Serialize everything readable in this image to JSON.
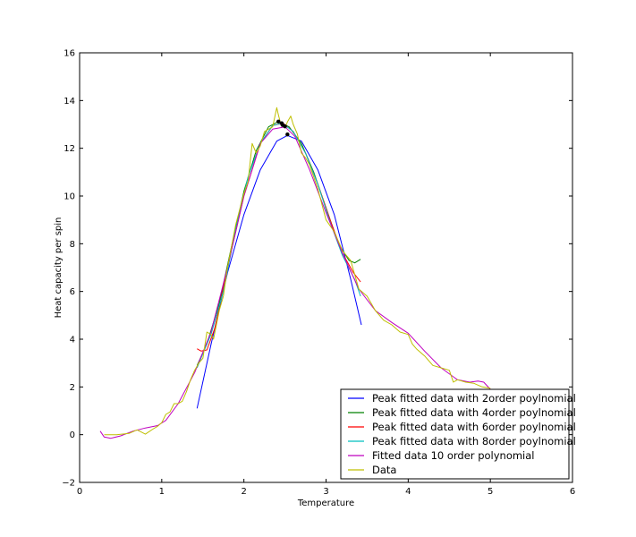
{
  "chart_data": {
    "type": "line",
    "title": "",
    "xlabel": "Temperature",
    "ylabel": "Heat capacity per spin",
    "xlim": [
      0,
      6
    ],
    "ylim": [
      -2,
      16
    ],
    "xticks": [
      "0",
      "1",
      "2",
      "3",
      "4",
      "5",
      "6"
    ],
    "yticks": [
      "−2",
      "0",
      "2",
      "4",
      "6",
      "8",
      "10",
      "12",
      "14",
      "16"
    ],
    "grid": false,
    "legend_position": "bottom-right",
    "series": [
      {
        "name": "Peak fitted data with 2order poylnomial",
        "color": "#0000ff",
        "x": [
          1.43,
          1.6,
          1.8,
          2.0,
          2.2,
          2.4,
          2.53,
          2.7,
          2.9,
          3.1,
          3.3,
          3.43
        ],
        "y": [
          1.1,
          3.78,
          6.78,
          9.22,
          11.1,
          12.3,
          12.54,
          12.3,
          11.1,
          9.22,
          6.52,
          4.6
        ]
      },
      {
        "name": "Peak fitted data with 4order poylnomial",
        "color": "#008000",
        "x": [
          1.43,
          1.55,
          1.7,
          1.85,
          2.0,
          2.15,
          2.3,
          2.42,
          2.55,
          2.7,
          2.85,
          3.0,
          3.15,
          3.28,
          3.35,
          3.42
        ],
        "y": [
          2.9,
          3.8,
          5.5,
          7.9,
          10.2,
          11.9,
          12.9,
          13.12,
          12.9,
          12.2,
          11.0,
          9.5,
          8.0,
          7.3,
          7.2,
          7.35
        ]
      },
      {
        "name": "Peak fitted data with 6order poylnomial",
        "color": "#ff0000",
        "x": [
          1.43,
          1.48,
          1.55,
          1.65,
          1.8,
          2.0,
          2.2,
          2.35,
          2.48,
          2.6,
          2.75,
          2.9,
          3.05,
          3.2,
          3.33,
          3.42
        ],
        "y": [
          3.6,
          3.5,
          3.55,
          4.5,
          7.0,
          10.0,
          12.2,
          12.95,
          13.05,
          12.7,
          11.8,
          10.5,
          9.0,
          7.6,
          6.8,
          6.4
        ]
      },
      {
        "name": "Peak fitted data with 8order poylnomial",
        "color": "#00bfbf",
        "x": [
          1.43,
          1.5,
          1.6,
          1.75,
          1.9,
          2.05,
          2.2,
          2.35,
          2.47,
          2.6,
          2.75,
          2.9,
          3.05,
          3.2,
          3.35,
          3.42
        ],
        "y": [
          2.8,
          3.4,
          4.2,
          6.0,
          8.6,
          10.8,
          12.2,
          12.95,
          13.05,
          12.7,
          11.8,
          10.5,
          8.9,
          7.5,
          6.5,
          5.8
        ]
      },
      {
        "name": "Fitted data 10 order polynomial",
        "color": "#bf00bf",
        "x": [
          0.25,
          0.3,
          0.38,
          0.5,
          0.65,
          0.8,
          0.95,
          1.05,
          1.2,
          1.4,
          1.6,
          1.8,
          2.0,
          2.2,
          2.35,
          2.5,
          2.62,
          2.8,
          3.0,
          3.2,
          3.4,
          3.6,
          3.8,
          4.0,
          4.2,
          4.4,
          4.6,
          4.75,
          4.85,
          4.92,
          5.0
        ],
        "y": [
          0.15,
          -0.1,
          -0.15,
          -0.05,
          0.15,
          0.28,
          0.38,
          0.6,
          1.3,
          2.6,
          4.3,
          7.0,
          10.0,
          12.2,
          12.8,
          12.9,
          12.5,
          11.1,
          9.3,
          7.6,
          6.1,
          5.2,
          4.7,
          4.25,
          3.5,
          2.8,
          2.3,
          2.2,
          2.25,
          2.2,
          1.9
        ]
      },
      {
        "name": "Data",
        "color": "#bfbf00",
        "x": [
          0.3,
          0.45,
          0.6,
          0.7,
          0.8,
          0.9,
          0.95,
          1.0,
          1.05,
          1.1,
          1.15,
          1.2,
          1.25,
          1.3,
          1.35,
          1.4,
          1.45,
          1.5,
          1.55,
          1.6,
          1.63,
          1.7,
          1.75,
          1.8,
          1.9,
          2.0,
          2.05,
          2.1,
          2.15,
          2.2,
          2.25,
          2.3,
          2.35,
          2.4,
          2.42,
          2.45,
          2.5,
          2.53,
          2.57,
          2.6,
          2.65,
          2.7,
          2.75,
          2.8,
          2.9,
          3.0,
          3.1,
          3.2,
          3.3,
          3.4,
          3.5,
          3.6,
          3.7,
          3.8,
          3.9,
          4.0,
          4.05,
          4.1,
          4.2,
          4.3,
          4.4,
          4.5,
          4.55,
          4.6,
          4.7,
          4.8,
          4.9,
          5.0
        ],
        "y": [
          0.0,
          0.0,
          0.05,
          0.2,
          0.02,
          0.25,
          0.35,
          0.5,
          0.85,
          0.95,
          1.3,
          1.3,
          1.4,
          1.8,
          2.3,
          2.7,
          3.0,
          3.2,
          4.3,
          4.2,
          4.0,
          5.2,
          5.8,
          7.0,
          8.8,
          10.1,
          10.6,
          12.2,
          11.8,
          12.1,
          12.7,
          12.8,
          12.9,
          13.7,
          13.4,
          13.0,
          12.85,
          13.1,
          13.35,
          13.0,
          12.6,
          11.8,
          11.6,
          11.3,
          10.3,
          9.0,
          8.5,
          7.7,
          7.3,
          6.1,
          5.8,
          5.2,
          4.8,
          4.6,
          4.3,
          4.2,
          3.8,
          3.6,
          3.3,
          2.9,
          2.8,
          2.7,
          2.2,
          2.3,
          2.2,
          2.15,
          2.0,
          1.95
        ]
      }
    ],
    "peak_markers": [
      {
        "x": 2.53,
        "y": 12.58
      },
      {
        "x": 2.42,
        "y": 13.12
      },
      {
        "x": 2.47,
        "y": 12.98
      },
      {
        "x": 2.46,
        "y": 13.05
      },
      {
        "x": 2.5,
        "y": 12.92
      }
    ]
  }
}
